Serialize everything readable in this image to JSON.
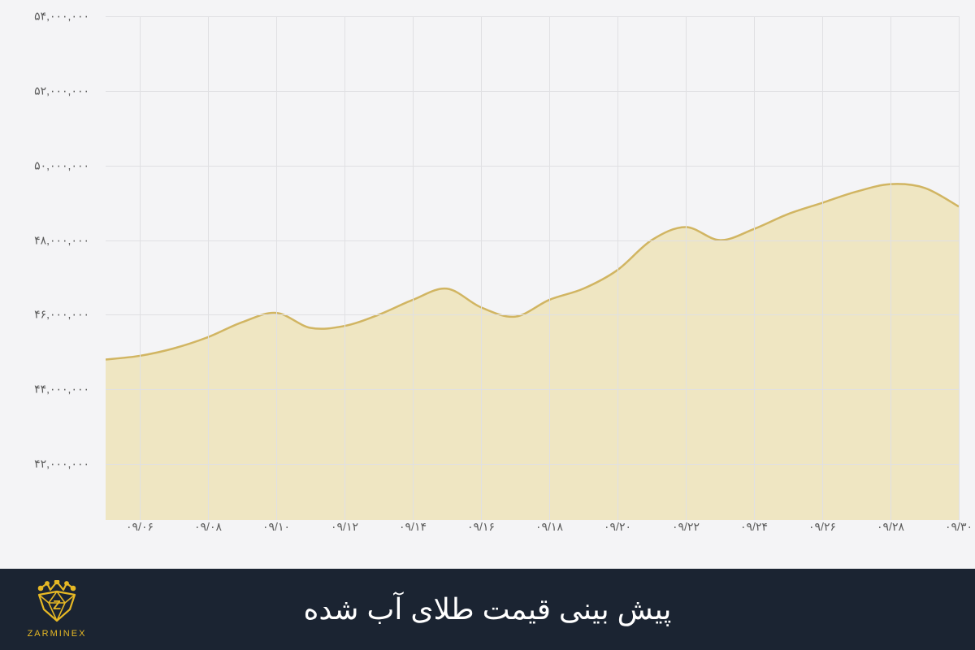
{
  "chart": {
    "type": "area",
    "background_color": "#f4f4f6",
    "grid_color": "#e0e0e3",
    "label_color": "#5a5a5a",
    "label_fontsize": 14,
    "line_color": "#d1b562",
    "fill_color": "#eddfac",
    "fill_opacity": 0.7,
    "line_width": 2.5,
    "ylim": [
      40500000,
      54000000
    ],
    "y_ticks": [
      42000000,
      44000000,
      46000000,
      48000000,
      50000000,
      52000000,
      54000000
    ],
    "y_tick_labels": [
      "۴۲,۰۰۰,۰۰۰",
      "۴۴,۰۰۰,۰۰۰",
      "۴۶,۰۰۰,۰۰۰",
      "۴۸,۰۰۰,۰۰۰",
      "۵۰,۰۰۰,۰۰۰",
      "۵۲,۰۰۰,۰۰۰",
      "۵۴,۰۰۰,۰۰۰"
    ],
    "x_ticks": [
      6,
      8,
      10,
      12,
      14,
      16,
      18,
      20,
      22,
      24,
      26,
      28,
      30
    ],
    "x_tick_labels": [
      "۰۹/۰۶",
      "۰۹/۰۸",
      "۰۹/۱۰",
      "۰۹/۱۲",
      "۰۹/۱۴",
      "۰۹/۱۶",
      "۰۹/۱۸",
      "۰۹/۲۰",
      "۰۹/۲۲",
      "۰۹/۲۴",
      "۰۹/۲۶",
      "۰۹/۲۸",
      "۰۹/۳۰"
    ],
    "xlim": [
      5,
      30
    ],
    "data": [
      {
        "x": 5,
        "y": 44800000
      },
      {
        "x": 6,
        "y": 44900000
      },
      {
        "x": 7,
        "y": 45100000
      },
      {
        "x": 8,
        "y": 45400000
      },
      {
        "x": 9,
        "y": 45800000
      },
      {
        "x": 10,
        "y": 46050000
      },
      {
        "x": 11,
        "y": 45650000
      },
      {
        "x": 12,
        "y": 45700000
      },
      {
        "x": 13,
        "y": 46000000
      },
      {
        "x": 14,
        "y": 46400000
      },
      {
        "x": 15,
        "y": 46700000
      },
      {
        "x": 16,
        "y": 46200000
      },
      {
        "x": 17,
        "y": 45950000
      },
      {
        "x": 18,
        "y": 46400000
      },
      {
        "x": 19,
        "y": 46700000
      },
      {
        "x": 20,
        "y": 47200000
      },
      {
        "x": 21,
        "y": 48000000
      },
      {
        "x": 22,
        "y": 48350000
      },
      {
        "x": 23,
        "y": 48000000
      },
      {
        "x": 24,
        "y": 48300000
      },
      {
        "x": 25,
        "y": 48700000
      },
      {
        "x": 26,
        "y": 49000000
      },
      {
        "x": 27,
        "y": 49300000
      },
      {
        "x": 28,
        "y": 49500000
      },
      {
        "x": 29,
        "y": 49400000
      },
      {
        "x": 30,
        "y": 48900000
      }
    ]
  },
  "footer": {
    "title": "پیش بینی قیمت طلای آب شده",
    "title_color": "#ffffff",
    "title_fontsize": 36,
    "background_color": "#1b2432",
    "logo_brand": "ZARMINEX",
    "logo_color": "#e6b825"
  }
}
